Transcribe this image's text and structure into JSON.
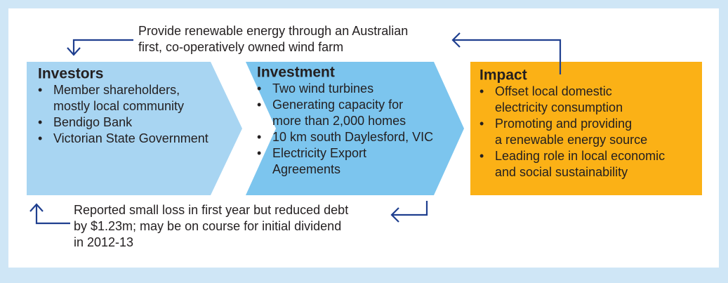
{
  "top_note": {
    "lines": [
      "Provide renewable energy through an Australian",
      "first, co-operatively owned wind farm"
    ]
  },
  "boxes": [
    {
      "title": "Investors",
      "items": [
        [
          "Member shareholders,",
          "mostly local community"
        ],
        [
          "Bendigo Bank"
        ],
        [
          "Victorian State Government"
        ]
      ]
    },
    {
      "title": "Investment",
      "items": [
        [
          "Two wind turbines"
        ],
        [
          "Generating capacity for",
          "more than 2,000 homes"
        ],
        [
          "10 km south Daylesford, VIC"
        ],
        [
          "Electricity Export",
          "Agreements"
        ]
      ]
    },
    {
      "title": "Impact",
      "items": [
        [
          "Offset local domestic",
          "electricity consumption"
        ],
        [
          "Promoting and providing",
          "a renewable energy source"
        ],
        [
          "Leading role in local economic",
          "and social sustainability"
        ]
      ]
    }
  ],
  "bottom_note": {
    "lines": [
      "Reported small loss in first year but reduced debt",
      "by $1.23m; may be on course for initial dividend",
      "in 2012-13"
    ]
  }
}
